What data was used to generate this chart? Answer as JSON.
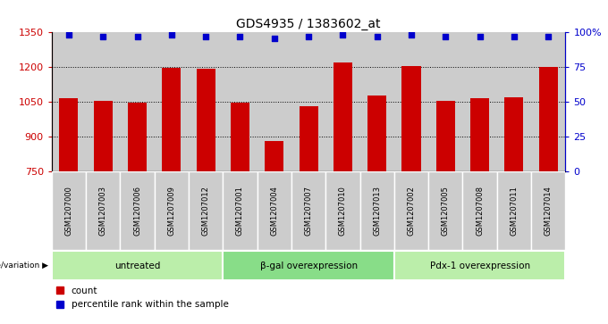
{
  "title": "GDS4935 / 1383602_at",
  "samples": [
    "GSM1207000",
    "GSM1207003",
    "GSM1207006",
    "GSM1207009",
    "GSM1207012",
    "GSM1207001",
    "GSM1207004",
    "GSM1207007",
    "GSM1207010",
    "GSM1207013",
    "GSM1207002",
    "GSM1207005",
    "GSM1207008",
    "GSM1207011",
    "GSM1207014"
  ],
  "counts": [
    1068,
    1055,
    1047,
    1198,
    1193,
    1047,
    884,
    1033,
    1219,
    1077,
    1207,
    1055,
    1065,
    1070,
    1202
  ],
  "percentiles": [
    98,
    97,
    97,
    98,
    97,
    97,
    96,
    97,
    98,
    97,
    98,
    97,
    97,
    97,
    97
  ],
  "groups": [
    {
      "label": "untreated",
      "start": 0,
      "end": 5
    },
    {
      "label": "β-gal overexpression",
      "start": 5,
      "end": 10
    },
    {
      "label": "Pdx-1 overexpression",
      "start": 10,
      "end": 15
    }
  ],
  "ylim_left": [
    750,
    1350
  ],
  "ylim_right": [
    0,
    100
  ],
  "yticks_left": [
    750,
    900,
    1050,
    1200,
    1350
  ],
  "yticks_right": [
    0,
    25,
    50,
    75,
    100
  ],
  "bar_color": "#cc0000",
  "dot_color": "#0000cc",
  "bg_color": "#cccccc",
  "group_bg_color_light": "#aaddaa",
  "group_bg_color_dark": "#55cc55",
  "cell_edge_color": "#aaaaaa",
  "left_label_color": "#cc0000",
  "right_label_color": "#0000cc",
  "bar_width": 0.55,
  "genotype_label": "genotype/variation"
}
